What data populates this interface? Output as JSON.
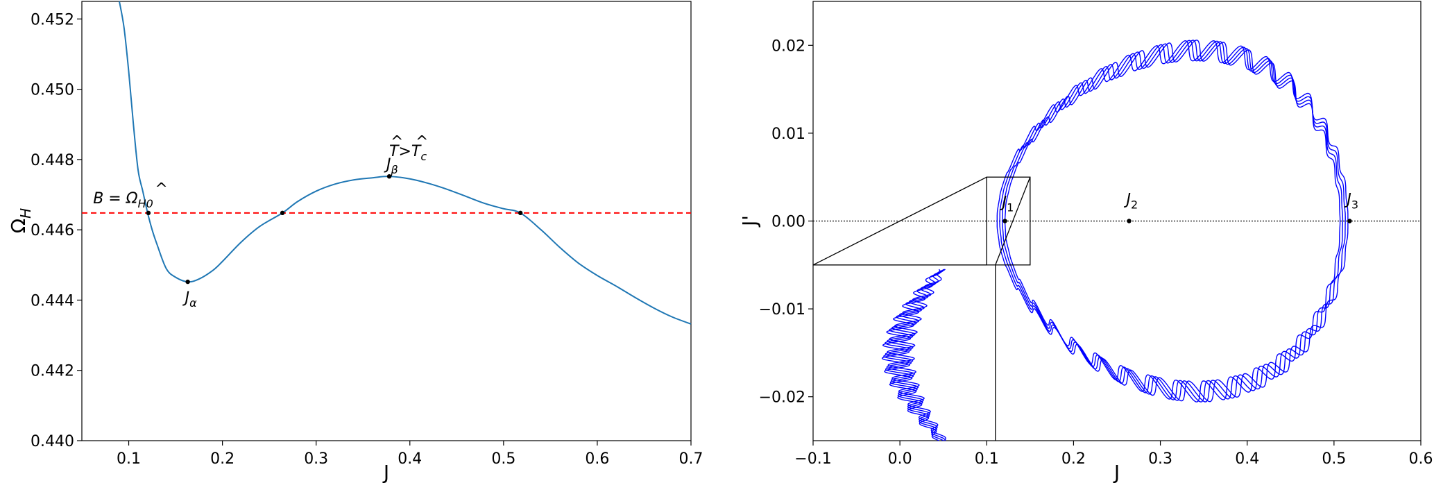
{
  "chart_data": [
    {
      "type": "line",
      "xlabel": "J",
      "ylabel": "Ω̂_H",
      "xlim": [
        0.05,
        0.7
      ],
      "ylim": [
        0.44,
        0.4525
      ],
      "xticks": [
        0.1,
        0.2,
        0.3,
        0.4,
        0.5,
        0.6,
        0.7
      ],
      "xtick_labels": [
        "0.1",
        "0.2",
        "0.3",
        "0.4",
        "0.5",
        "0.6",
        "0.7"
      ],
      "yticks": [
        0.44,
        0.442,
        0.444,
        0.446,
        0.448,
        0.45,
        0.452
      ],
      "ytick_labels": [
        "0.440",
        "0.442",
        "0.444",
        "0.446",
        "0.448",
        "0.450",
        "0.452"
      ],
      "grid": false,
      "series": [
        {
          "color": "#1f77b4",
          "x": [
            0.09,
            0.095,
            0.1,
            0.105,
            0.11,
            0.115,
            0.12,
            0.125,
            0.13,
            0.14,
            0.15,
            0.163,
            0.175,
            0.19,
            0.2,
            0.22,
            0.24,
            0.264,
            0.28,
            0.3,
            0.32,
            0.34,
            0.36,
            0.378,
            0.4,
            0.42,
            0.44,
            0.46,
            0.48,
            0.5,
            0.518,
            0.54,
            0.56,
            0.58,
            0.6,
            0.62,
            0.64,
            0.66,
            0.68,
            0.7
          ],
          "y": [
            0.4525,
            0.45175,
            0.4505,
            0.449,
            0.4477,
            0.4471,
            0.4465,
            0.446,
            0.4456,
            0.4449,
            0.44465,
            0.44452,
            0.4446,
            0.44485,
            0.4451,
            0.44565,
            0.4461,
            0.44648,
            0.4468,
            0.4471,
            0.4473,
            0.44742,
            0.44748,
            0.44752,
            0.44745,
            0.44732,
            0.44715,
            0.44695,
            0.44675,
            0.4466,
            0.44648,
            0.446,
            0.4455,
            0.44505,
            0.4447,
            0.4444,
            0.44408,
            0.44378,
            0.44352,
            0.44332
          ]
        }
      ],
      "hline": {
        "y": 0.44648,
        "color": "#ff0000",
        "style": "dashed"
      },
      "points": [
        {
          "x": 0.121,
          "y": 0.44648
        },
        {
          "x": 0.163,
          "y": 0.44452
        },
        {
          "x": 0.264,
          "y": 0.44648
        },
        {
          "x": 0.378,
          "y": 0.44752
        },
        {
          "x": 0.518,
          "y": 0.44648
        }
      ],
      "annotations": [
        {
          "id": "alpha",
          "text": "J_α",
          "x": 0.163,
          "y": 0.44452
        },
        {
          "id": "beta",
          "text": "J_β",
          "x": 0.378,
          "y": 0.44752
        },
        {
          "id": "b",
          "text": "B = Ω̂_H0",
          "x": 0.121,
          "y": 0.44648
        },
        {
          "id": "temp",
          "text": "T̂>T̂_c",
          "x": 0.39,
          "y": 0.448
        }
      ]
    },
    {
      "type": "line",
      "xlabel": "J",
      "ylabel": "J'",
      "xlim": [
        -0.1,
        0.6
      ],
      "ylim": [
        -0.025,
        0.025
      ],
      "xticks": [
        -0.1,
        0.0,
        0.1,
        0.2,
        0.3,
        0.4,
        0.5,
        0.6
      ],
      "xtick_labels": [
        "−0.1",
        "0.0",
        "0.1",
        "0.2",
        "0.3",
        "0.4",
        "0.5",
        "0.6"
      ],
      "yticks": [
        -0.02,
        -0.01,
        0.0,
        0.01,
        0.02
      ],
      "ytick_labels": [
        "−0.02",
        "−0.01",
        "0.00",
        "0.01",
        "0.02"
      ],
      "grid": false,
      "trajectory_color": "#0000ff",
      "hline": {
        "y": 0.0,
        "color": "#000000",
        "style": "dotted"
      },
      "points": [
        {
          "x": 0.121,
          "y": 0.0
        },
        {
          "x": 0.264,
          "y": 0.0
        },
        {
          "x": 0.518,
          "y": 0.0
        }
      ],
      "annotations": [
        {
          "id": "j1",
          "text": "J_1",
          "x": 0.121,
          "y": 0.0
        },
        {
          "id": "j2",
          "text": "J_2",
          "x": 0.264,
          "y": 0.0
        },
        {
          "id": "j3",
          "text": "J_3",
          "x": 0.518,
          "y": 0.0
        }
      ],
      "zoom_box": {
        "x": [
          0.1,
          0.15
        ],
        "y": [
          -0.005,
          0.005
        ]
      }
    }
  ]
}
